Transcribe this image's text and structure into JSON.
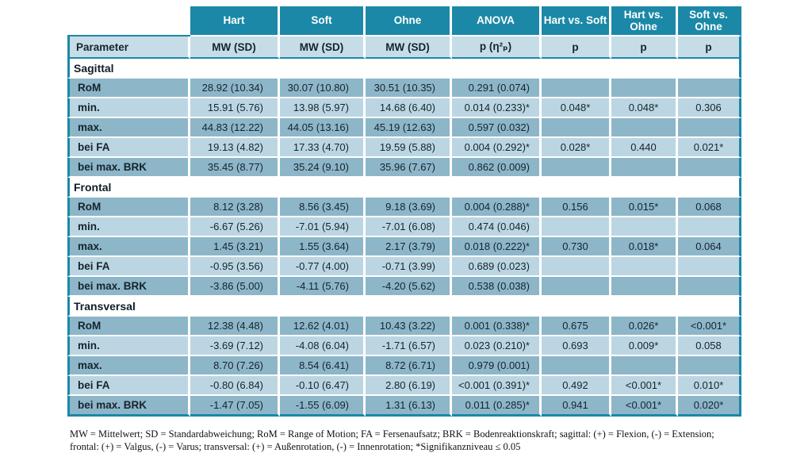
{
  "colors": {
    "accent_teal": "#1b88a7",
    "subheader_bg": "#c6dde8",
    "row_dark": "#8db6c9",
    "row_light": "#bbd6e2"
  },
  "table": {
    "top_header": [
      "Hart",
      "Soft",
      "Ohne",
      "ANOVA",
      "Hart vs. Soft",
      "Hart vs. Ohne",
      "Soft vs. Ohne"
    ],
    "sub_header": {
      "parameter": "Parameter",
      "cols": [
        "MW (SD)",
        "MW (SD)",
        "MW (SD)",
        "p (η²ₚ)",
        "p",
        "p",
        "p"
      ]
    },
    "sections": [
      {
        "title": "Sagittal",
        "rows": [
          {
            "label": "RoM",
            "cells": [
              "28.92 (10.34)",
              "30.07 (10.80)",
              "30.51 (10.35)",
              "0.291 (0.074)",
              "",
              "",
              ""
            ]
          },
          {
            "label": "min.",
            "cells": [
              "15.91 (5.76)",
              "13.98 (5.97)",
              "14.68 (6.40)",
              "0.014 (0.233)*",
              "0.048*",
              "0.048*",
              "0.306"
            ]
          },
          {
            "label": "max.",
            "cells": [
              "44.83 (12.22)",
              "44.05 (13.16)",
              "45.19 (12.63)",
              "0.597 (0.032)",
              "",
              "",
              ""
            ]
          },
          {
            "label": "bei FA",
            "cells": [
              "19.13 (4.82)",
              "17.33 (4.70)",
              "19.59 (5.88)",
              "0.004 (0.292)*",
              "0.028*",
              "0.440",
              "0.021*"
            ]
          },
          {
            "label": "bei max. BRK",
            "cells": [
              "35.45 (8.77)",
              "35.24 (9.10)",
              "35.96 (7.67)",
              "0.862 (0.009)",
              "",
              "",
              ""
            ]
          }
        ]
      },
      {
        "title": "Frontal",
        "rows": [
          {
            "label": "RoM",
            "cells": [
              "8.12 (3.28)",
              "8.56 (3.45)",
              "9.18 (3.69)",
              "0.004 (0.288)*",
              "0.156",
              "0.015*",
              "0.068"
            ]
          },
          {
            "label": "min.",
            "cells": [
              "-6.67 (5.26)",
              "-7.01 (5.94)",
              "-7.01 (6.08)",
              "0.474 (0.046)",
              "",
              "",
              ""
            ]
          },
          {
            "label": "max.",
            "cells": [
              "1.45 (3.21)",
              "1.55 (3.64)",
              "2.17 (3.79)",
              "0.018 (0.222)*",
              "0.730",
              "0.018*",
              "0.064"
            ]
          },
          {
            "label": "bei FA",
            "cells": [
              "-0.95 (3.56)",
              "-0.77 (4.00)",
              "-0.71 (3.99)",
              "0.689 (0.023)",
              "",
              "",
              ""
            ]
          },
          {
            "label": "bei max. BRK",
            "cells": [
              "-3.86 (5.00)",
              "-4.11 (5.76)",
              "-4.20 (5.62)",
              "0.538 (0.038)",
              "",
              "",
              ""
            ]
          }
        ]
      },
      {
        "title": "Transversal",
        "rows": [
          {
            "label": "RoM",
            "cells": [
              "12.38 (4.48)",
              "12.62 (4.01)",
              "10.43 (3.22)",
              "0.001 (0.338)*",
              "0.675",
              "0.026*",
              "<0.001*"
            ]
          },
          {
            "label": "min.",
            "cells": [
              "-3.69 (7.12)",
              "-4.08 (6.04)",
              "-1.71 (6.57)",
              "0.023 (0.210)*",
              "0.693",
              "0.009*",
              "0.058"
            ]
          },
          {
            "label": "max.",
            "cells": [
              "8.70 (7.26)",
              "8.54 (6.41)",
              "8.72 (6.71)",
              "0.979 (0.001)",
              "",
              "",
              ""
            ]
          },
          {
            "label": "bei FA",
            "cells": [
              "-0.80 (6.84)",
              "-0.10 (6.47)",
              "2.80 (6.19)",
              "<0.001 (0.391)*",
              "0.492",
              "<0.001*",
              "0.010*"
            ]
          },
          {
            "label": "bei max. BRK",
            "cells": [
              "-1.47 (7.05)",
              "-1.55 (6.09)",
              "1.31 (6.13)",
              "0.011 (0.285)*",
              "0.941",
              "<0.001*",
              "0.020*"
            ]
          }
        ]
      }
    ],
    "footnote_line1": "MW = Mittelwert; SD = Standardabweichung; RoM = Range of Motion; FA = Fersenaufsatz; BRK = Bodenreaktionskraft; sagittal: (+) = Flexion, (-) = Extension;",
    "footnote_line2": "frontal: (+) = Valgus, (-) = Varus; transversal: (+) = Außenrotation, (-) = Innenrotation; *Signifikanzniveau ≤ 0.05"
  }
}
